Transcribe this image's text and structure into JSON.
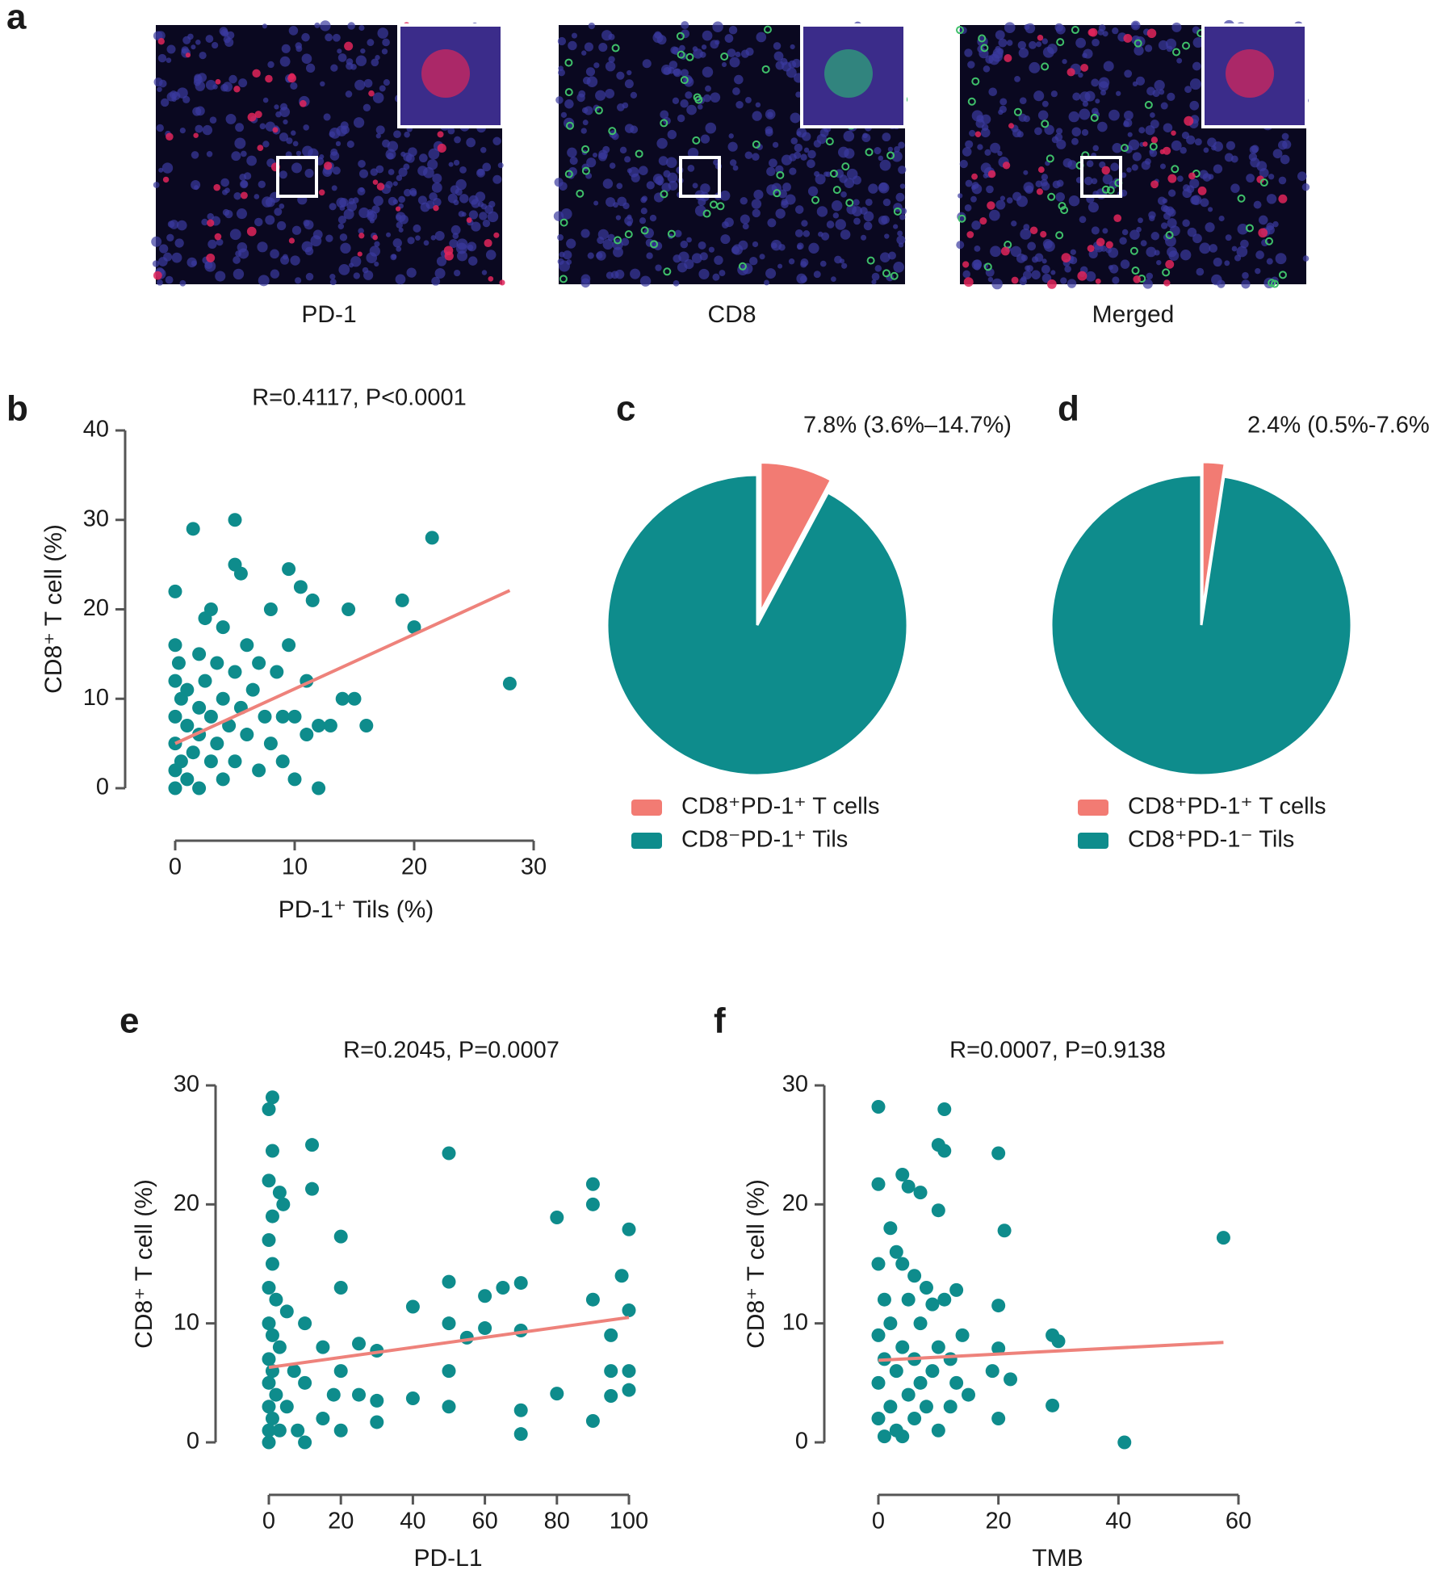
{
  "panel_a": {
    "panel": "a",
    "images": [
      {
        "label": "PD-1"
      },
      {
        "label": "CD8"
      },
      {
        "label": "Merged"
      }
    ]
  },
  "chart_data": [
    {
      "type": "scatter",
      "panel": "b",
      "title": "R=0.4117, P<0.0001",
      "x_label": "PD-1⁺ Tils (%)",
      "y_label": "CD8⁺ T cell (%)",
      "color": "#0e8c8c",
      "x": [
        0,
        0,
        0,
        0,
        0,
        0,
        0,
        0.3,
        0.5,
        0.5,
        1,
        1,
        1,
        1.5,
        1.5,
        2,
        2,
        2,
        2,
        2.5,
        2.5,
        3,
        3,
        3,
        3.5,
        3.5,
        4,
        4,
        4,
        4.5,
        5,
        5,
        5,
        5,
        5.5,
        5.5,
        6,
        6,
        6.5,
        7,
        7,
        7.5,
        8,
        8,
        8.5,
        9,
        9,
        9.5,
        9.5,
        10,
        10,
        10.5,
        11,
        11,
        11.5,
        12,
        12,
        13,
        14,
        14.5,
        15,
        16,
        19,
        20,
        21.5,
        28
      ],
      "values": [
        22,
        16,
        12,
        8,
        5,
        2,
        0,
        14,
        10,
        3,
        7,
        1,
        11,
        29,
        4,
        15,
        9,
        6,
        0,
        19,
        12,
        3,
        8,
        20,
        14,
        5,
        10,
        18,
        1,
        7,
        30,
        25,
        13,
        3,
        24,
        9,
        16,
        6,
        11,
        2,
        14,
        8,
        5,
        20,
        13,
        3,
        8,
        24.5,
        16,
        8,
        1,
        22.5,
        6,
        12,
        21,
        0,
        7,
        7,
        10,
        20,
        10,
        7,
        21,
        18,
        28,
        11.7
      ],
      "fit": {
        "x": [
          0,
          28
        ],
        "values": [
          5,
          22.1
        ],
        "color": "#ee827b"
      },
      "xlim": [
        0,
        30
      ],
      "xticks": [
        0,
        10,
        20,
        30
      ],
      "ylim": [
        0,
        40
      ],
      "yticks": [
        0,
        10,
        20,
        30,
        40
      ]
    },
    {
      "type": "pie",
      "panel": "c",
      "categories": [
        "CD8⁺PD-1⁺ T cells",
        "CD8⁻PD-1⁺ Tils"
      ],
      "values": [
        7.8,
        92.2
      ],
      "value_labels": [
        "7.8% (3.6%–14.7%)",
        null
      ],
      "colors": [
        "#f27b73",
        "#0e8c8c"
      ]
    },
    {
      "type": "pie",
      "panel": "d",
      "categories": [
        "CD8⁺PD-1⁺ T cells",
        "CD8⁺PD-1⁻ Tils"
      ],
      "values": [
        2.4,
        97.6
      ],
      "value_labels": [
        "2.4% (0.5%-7.6%)",
        null
      ],
      "colors": [
        "#f27b73",
        "#0e8c8c"
      ]
    },
    {
      "type": "scatter",
      "panel": "e",
      "title": "R=0.2045, P=0.0007",
      "x_label": "PD-L1",
      "y_label": "CD8⁺ T cell (%)",
      "color": "#0e8c8c",
      "x": [
        0,
        0,
        0,
        0,
        0,
        0,
        0,
        0,
        0,
        0,
        1,
        1,
        1,
        1,
        1,
        1,
        1,
        2,
        2,
        3,
        3,
        3,
        4,
        5,
        5,
        7,
        8,
        10,
        10,
        10,
        12,
        12,
        15,
        15,
        18,
        20,
        20,
        20,
        20,
        25,
        25,
        30,
        30,
        30,
        40,
        40,
        50,
        50,
        50,
        50,
        50,
        55,
        60,
        60,
        65,
        70,
        70,
        70,
        70,
        80,
        80,
        90,
        90,
        90,
        90,
        95,
        95,
        95,
        98,
        100,
        100,
        100,
        100
      ],
      "values": [
        28,
        22,
        17,
        13,
        10,
        7,
        5,
        3,
        1,
        0,
        29,
        24.5,
        19,
        15,
        9,
        6,
        2,
        12,
        4,
        21,
        8,
        1,
        20,
        11,
        3,
        6,
        1,
        10,
        5,
        0,
        25,
        21.3,
        8,
        2,
        4,
        17.3,
        13,
        6,
        1,
        8.3,
        4,
        7.7,
        3.5,
        1.7,
        11.4,
        3.7,
        24.3,
        13.5,
        10,
        6,
        3,
        8.8,
        12.3,
        9.6,
        13,
        13.4,
        9.4,
        2.7,
        0.7,
        18.9,
        4.1,
        21.7,
        20,
        12,
        1.8,
        9,
        6,
        3.9,
        14,
        17.9,
        11.1,
        6,
        4.4
      ],
      "fit": {
        "x": [
          0,
          100
        ],
        "values": [
          6.3,
          10.5
        ],
        "color": "#ee827b"
      },
      "xlim": [
        0,
        100
      ],
      "xticks": [
        0,
        20,
        40,
        60,
        80,
        100
      ],
      "ylim": [
        0,
        30
      ],
      "yticks": [
        0,
        10,
        20,
        30
      ]
    },
    {
      "type": "scatter",
      "panel": "f",
      "title": "R=0.0007, P=0.9138",
      "x_label": "TMB",
      "y_label": "CD8⁺ T cell (%)",
      "color": "#0e8c8c",
      "x": [
        0,
        0,
        0,
        0,
        0,
        0,
        1,
        1,
        1,
        2,
        2,
        2,
        3,
        3,
        3,
        4,
        4,
        4,
        4,
        5,
        5,
        5,
        6,
        6,
        6,
        7,
        7,
        7,
        8,
        8,
        9,
        9,
        10,
        10,
        10,
        10,
        11,
        11,
        11,
        12,
        12,
        13,
        13,
        14,
        15,
        19,
        20,
        20,
        20,
        20,
        21,
        22,
        29,
        29,
        30,
        41,
        57.5
      ],
      "values": [
        28.2,
        21.7,
        15,
        9,
        5,
        2,
        12,
        7,
        0.5,
        18,
        10,
        3,
        16,
        6,
        1,
        22.5,
        15,
        8,
        0.5,
        21.5,
        12,
        4,
        14,
        7,
        2,
        21,
        10,
        5,
        13,
        3,
        11.6,
        6,
        25,
        19.5,
        8,
        1,
        28,
        24.5,
        12,
        7,
        3,
        12.8,
        5,
        9,
        4,
        6,
        24.3,
        11.5,
        7.9,
        2,
        17.8,
        5.3,
        9,
        3.1,
        8.5,
        0,
        17.2
      ],
      "fit": {
        "x": [
          0,
          57.5
        ],
        "values": [
          6.9,
          8.4
        ],
        "color": "#ee827b"
      },
      "xlim": [
        0,
        60
      ],
      "xticks": [
        0,
        20,
        40,
        60
      ],
      "ylim": [
        0,
        30
      ],
      "yticks": [
        0,
        10,
        20,
        30
      ]
    }
  ]
}
